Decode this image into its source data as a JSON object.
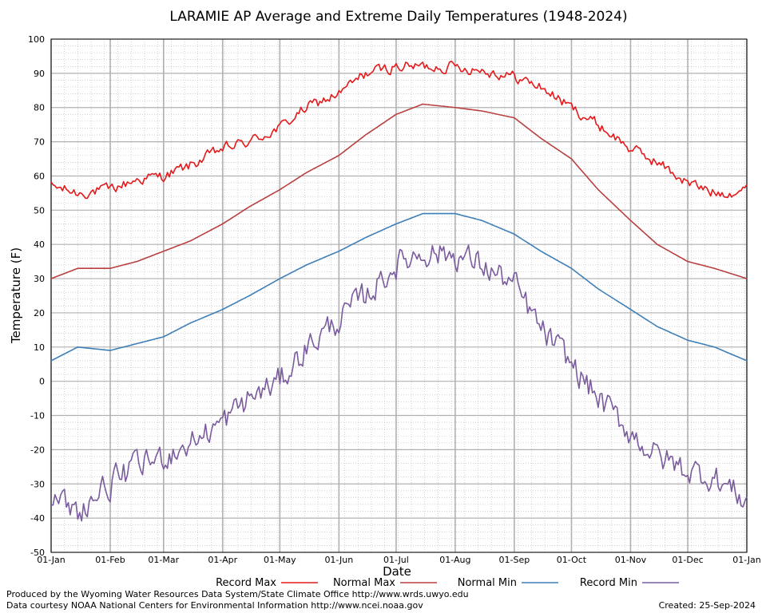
{
  "chart_data": {
    "type": "line",
    "title": "LARAMIE AP Average and Extreme Daily Temperatures (1948-2024)",
    "xlabel": "Date",
    "ylabel": "Temperature (F)",
    "ylim": [
      -50,
      100
    ],
    "yticks": [
      -50,
      -40,
      -30,
      -20,
      -10,
      0,
      10,
      20,
      30,
      40,
      50,
      60,
      70,
      80,
      90,
      100
    ],
    "xticks": [
      {
        "label": "01-Jan",
        "day": 1
      },
      {
        "label": "01-Feb",
        "day": 32
      },
      {
        "label": "01-Mar",
        "day": 60
      },
      {
        "label": "01-Apr",
        "day": 91
      },
      {
        "label": "01-May",
        "day": 121
      },
      {
        "label": "01-Jun",
        "day": 152
      },
      {
        "label": "01-Jul",
        "day": 182
      },
      {
        "label": "01-Aug",
        "day": 213
      },
      {
        "label": "01-Sep",
        "day": 244
      },
      {
        "label": "01-Oct",
        "day": 274
      },
      {
        "label": "01-Nov",
        "day": 305
      },
      {
        "label": "01-Dec",
        "day": 335
      },
      {
        "label": "01-Jan",
        "day": 366
      }
    ],
    "grid": true,
    "legend_position": "bottom",
    "x_day_of_year": [
      1,
      15,
      32,
      46,
      60,
      74,
      91,
      105,
      121,
      135,
      152,
      166,
      182,
      196,
      213,
      227,
      244,
      258,
      274,
      288,
      305,
      319,
      335,
      349,
      366
    ],
    "series": [
      {
        "name": "Record Max",
        "color": "#e41a1c",
        "values": [
          57,
          55,
          56,
          59,
          60,
          63,
          68,
          70,
          74,
          80,
          84,
          90,
          92,
          92,
          92,
          91,
          89,
          86,
          80,
          75,
          68,
          64,
          58,
          55,
          56
        ]
      },
      {
        "name": "Normal Max",
        "color": "#b84040",
        "values": [
          30,
          33,
          33,
          35,
          38,
          41,
          46,
          51,
          56,
          61,
          66,
          72,
          78,
          81,
          80,
          79,
          77,
          71,
          65,
          56,
          47,
          40,
          35,
          33,
          30
        ]
      },
      {
        "name": "Normal Min",
        "color": "#3f7fb8",
        "values": [
          6,
          10,
          9,
          11,
          13,
          17,
          21,
          25,
          30,
          34,
          38,
          42,
          46,
          49,
          49,
          47,
          43,
          38,
          33,
          27,
          21,
          16,
          12,
          10,
          6
        ]
      },
      {
        "name": "Record Min",
        "color": "#7a5c9e",
        "values": [
          -35,
          -38,
          -30,
          -25,
          -22,
          -18,
          -12,
          -5,
          0,
          10,
          18,
          25,
          34,
          38,
          37,
          34,
          28,
          15,
          5,
          -5,
          -15,
          -22,
          -26,
          -28,
          -35
        ]
      }
    ]
  },
  "footer": {
    "produced_by": "Produced by the Wyoming Water Resources Data System/State Climate Office http://www.wrds.uwyo.edu",
    "courtesy": "Data courtesy NOAA National Centers for Environmental Information http://www.ncei.noaa.gov",
    "created": "Created:  25-Sep-2024"
  }
}
